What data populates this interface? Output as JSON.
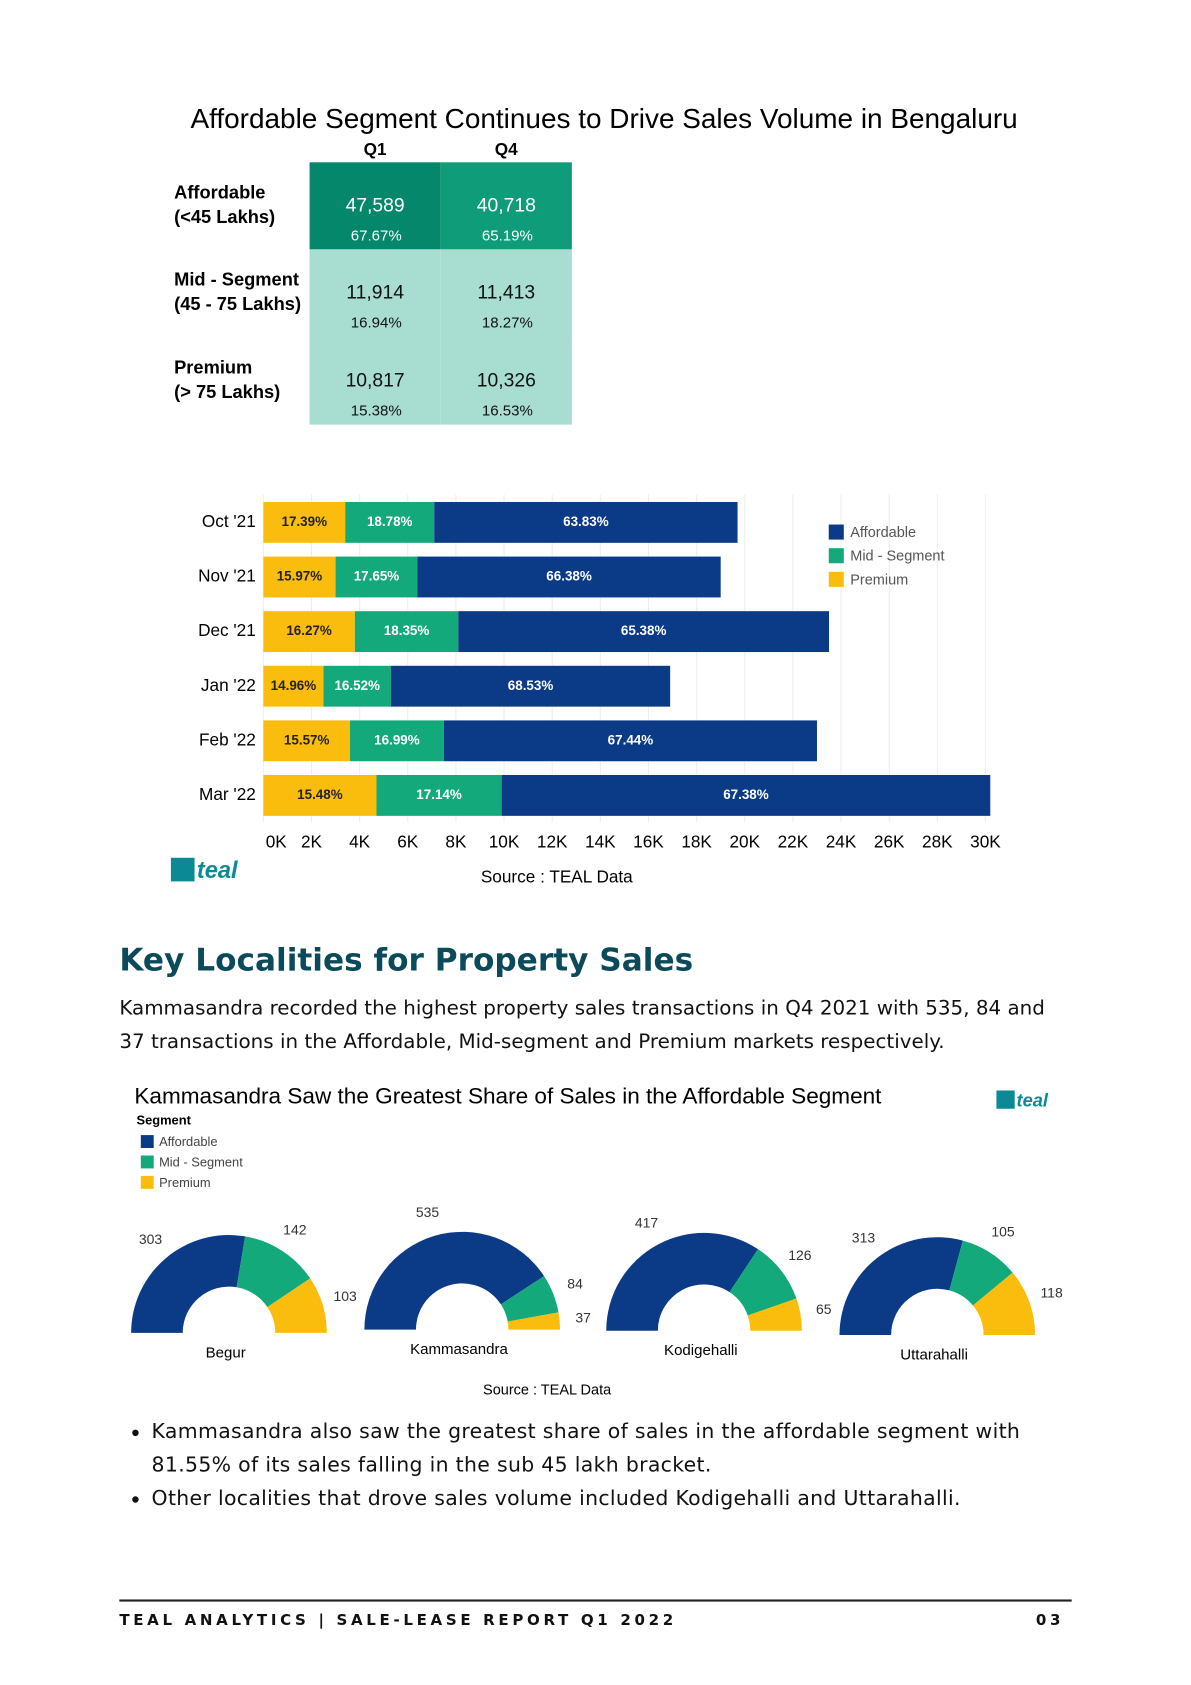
{
  "title": "Affordable Segment Continues to Drive Sales Volume in Bengaluru",
  "table": {
    "columns": [
      "Q1",
      "Q4"
    ],
    "rows": [
      {
        "label": [
          "Affordable",
          "(<45 Lakhs)"
        ],
        "cells": [
          {
            "value": "47,589",
            "share": "67.67%"
          },
          {
            "value": "40,718",
            "share": "65.19%"
          }
        ]
      },
      {
        "label": [
          "Mid - Segment",
          "(45 - 75 Lakhs)"
        ],
        "cells": [
          {
            "value": "11,914",
            "share": "16.94%"
          },
          {
            "value": "11,413",
            "share": "18.27%"
          }
        ]
      },
      {
        "label": [
          "Premium",
          "(> 75 Lakhs)"
        ],
        "cells": [
          {
            "value": "10,817",
            "share": "15.38%"
          },
          {
            "value": "10,326",
            "share": "16.53%"
          }
        ]
      }
    ]
  },
  "chart_data": [
    {
      "type": "stacked-hbar",
      "categories": [
        "Oct '21",
        "Nov '21",
        "Dec '21",
        "Jan '22",
        "Feb '22",
        "Mar '22"
      ],
      "series": [
        {
          "name": "Affordable",
          "color": "#0b3a86",
          "values": [
            12.6,
            12.6,
            15.4,
            11.6,
            15.5,
            20.3
          ],
          "share_labels": [
            "63.83%",
            "66.38%",
            "65.38%",
            "68.53%",
            "67.44%",
            "67.38%"
          ]
        },
        {
          "name": "Mid - Segment",
          "color": "#13a97a",
          "values": [
            3.7,
            3.4,
            4.3,
            2.8,
            3.9,
            5.2
          ],
          "share_labels": [
            "18.78%",
            "17.65%",
            "18.35%",
            "16.52%",
            "16.99%",
            "17.14%"
          ]
        },
        {
          "name": "Premium",
          "color": "#fbbd0d",
          "values": [
            3.4,
            3.0,
            3.8,
            2.5,
            3.6,
            4.7
          ],
          "share_labels": [
            "17.39%",
            "15.97%",
            "16.27%",
            "14.96%",
            "15.57%",
            "15.48%"
          ]
        }
      ],
      "xlim": [
        0,
        30.5
      ],
      "xticks": [
        {
          "value": 0,
          "label": "0K"
        },
        {
          "value": 2,
          "label": "2K"
        },
        {
          "value": 4,
          "label": "4K"
        },
        {
          "value": 6,
          "label": "6K"
        },
        {
          "value": 8,
          "label": "8K"
        },
        {
          "value": 10,
          "label": "10K"
        },
        {
          "value": 12,
          "label": "12K"
        },
        {
          "value": 14,
          "label": "14K"
        },
        {
          "value": 16,
          "label": "16K"
        },
        {
          "value": 18,
          "label": "18K"
        },
        {
          "value": 20,
          "label": "20K"
        },
        {
          "value": 22,
          "label": "22K"
        },
        {
          "value": 24,
          "label": "24K"
        },
        {
          "value": 26,
          "label": "26K"
        },
        {
          "value": 28,
          "label": "28K"
        },
        {
          "value": 30,
          "label": "30K"
        }
      ],
      "grid": true,
      "legend": "top-right",
      "logo": "teal",
      "source": "Source : TEAL Data"
    },
    {
      "type": "half-donut",
      "title": "Kammasandra Saw the Greatest Share of Sales in the Affordable Segment",
      "legend_title": "Segment",
      "categories": [
        "Begur",
        "Kammasandra",
        "Kodigehalli",
        "Uttarahalli"
      ],
      "series": [
        {
          "name": "Affordable",
          "color": "#0b3a86",
          "values": [
            303,
            535,
            417,
            313
          ]
        },
        {
          "name": "Mid - Segment",
          "color": "#13a97a",
          "values": [
            142,
            84,
            126,
            105
          ]
        },
        {
          "name": "Premium",
          "color": "#fbbd0d",
          "values": [
            103,
            37,
            65,
            118
          ]
        }
      ],
      "logo": "teal",
      "source": "Source : TEAL Data"
    }
  ],
  "section": {
    "heading": "Key Localities for Property Sales",
    "paragraph": "Kammasandra recorded the highest property sales transactions in Q4 2021 with 535, 84 and 37 transactions in the Affordable, Mid-segment and Premium markets respectively.",
    "bullets": [
      "Kammasandra also saw the greatest share of sales in the affordable segment with 81.55% of its sales falling in the sub 45 lakh bracket.",
      "Other localities that drove sales volume included Kodigehalli and Uttarahalli."
    ]
  },
  "footer": {
    "text": "TEAL ANALYTICS | SALE-LEASE REPORT Q1 2022",
    "page": "03"
  }
}
